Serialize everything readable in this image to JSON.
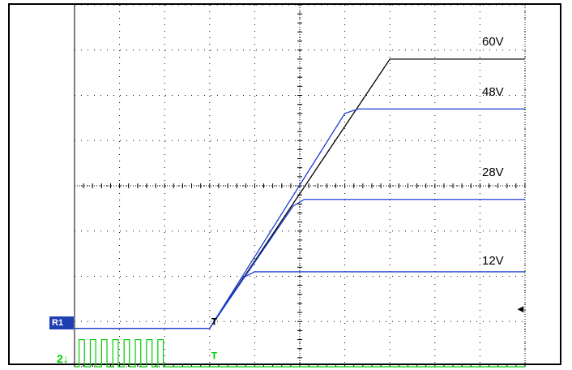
{
  "chart_data": {
    "type": "line",
    "title": "",
    "xlabel": "",
    "ylabel": "",
    "grid": true,
    "xlim": [
      0,
      10
    ],
    "ylim": [
      0,
      8
    ],
    "series": [
      {
        "name": "60V",
        "color": "#000000",
        "points": [
          [
            0,
            0.85
          ],
          [
            3,
            0.85
          ],
          [
            7,
            6.8
          ],
          [
            10,
            6.8
          ]
        ]
      },
      {
        "name": "48V",
        "color": "#1f3fd0",
        "points": [
          [
            0,
            0.85
          ],
          [
            3,
            0.85
          ],
          [
            6.0,
            5.6
          ],
          [
            6.3,
            5.7
          ],
          [
            10,
            5.7
          ]
        ]
      },
      {
        "name": "28V",
        "color": "#1f3fd0",
        "points": [
          [
            0,
            0.85
          ],
          [
            3,
            0.85
          ],
          [
            4.85,
            3.55
          ],
          [
            5.1,
            3.7
          ],
          [
            10,
            3.7
          ]
        ]
      },
      {
        "name": "12V",
        "color": "#1f3fd0",
        "points": [
          [
            0,
            0.85
          ],
          [
            3,
            0.85
          ],
          [
            3.7,
            1.95
          ],
          [
            4.0,
            2.1
          ],
          [
            10,
            2.1
          ]
        ]
      }
    ],
    "digital": {
      "color": "#00cc00",
      "pulses_x": [
        0.1,
        0.35,
        0.6,
        0.85,
        1.1,
        1.35,
        1.6,
        1.85
      ],
      "pulse_high": 0.6,
      "baseline": 0.0
    },
    "labels": [
      "60V",
      "48V",
      "28V",
      "12V"
    ]
  },
  "markers": {
    "ch1": "R1",
    "ch2": "2",
    "trigger": "T",
    "ref_arrow": "◄"
  }
}
